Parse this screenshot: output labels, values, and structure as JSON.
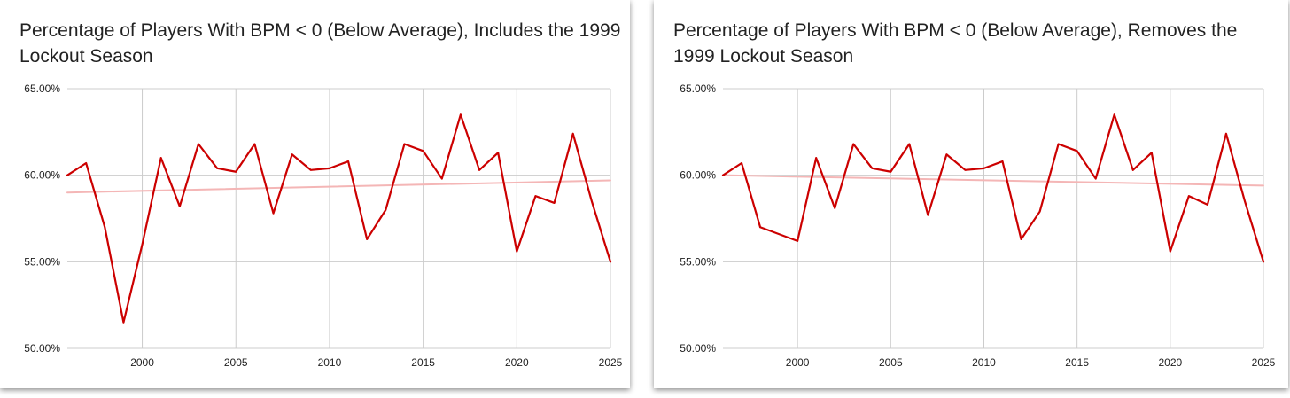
{
  "chart_data": [
    {
      "type": "line",
      "title": "Percentage of Players With BPM < 0 (Below Average), Includes the 1999 Lockout Season",
      "xlabel": "",
      "ylabel": "",
      "xlim": [
        1996,
        2025
      ],
      "ylim": [
        50,
        65
      ],
      "x_ticks": [
        2000,
        2005,
        2010,
        2015,
        2020,
        2025
      ],
      "y_ticks": [
        50,
        55,
        60,
        65
      ],
      "y_tick_labels": [
        "50.00%",
        "55.00%",
        "60.00%",
        "65.00%"
      ],
      "grid": true,
      "legend": "none",
      "series": [
        {
          "color": "#cc0000",
          "x": [
            1996,
            1997,
            1998,
            1999,
            2000,
            2001,
            2002,
            2003,
            2004,
            2005,
            2006,
            2007,
            2008,
            2009,
            2010,
            2011,
            2012,
            2013,
            2014,
            2015,
            2016,
            2017,
            2018,
            2019,
            2020,
            2021,
            2022,
            2023,
            2024,
            2025
          ],
          "values": [
            60.0,
            60.7,
            57.0,
            51.5,
            56.0,
            61.0,
            58.2,
            61.8,
            60.4,
            60.2,
            61.8,
            57.8,
            61.2,
            60.3,
            60.4,
            60.8,
            56.3,
            58.0,
            61.8,
            61.4,
            59.8,
            63.5,
            60.3,
            61.3,
            55.6,
            58.8,
            58.4,
            62.4,
            58.5,
            55.0
          ]
        },
        {
          "kind": "trendline",
          "color": "#f4b6b6",
          "x": [
            1996,
            2025
          ],
          "values": [
            59.0,
            59.7
          ]
        }
      ]
    },
    {
      "type": "line",
      "title": "Percentage of Players With BPM < 0 (Below Average), Removes the 1999 Lockout Season",
      "xlabel": "",
      "ylabel": "",
      "xlim": [
        1996,
        2025
      ],
      "ylim": [
        50,
        65
      ],
      "x_ticks": [
        2000,
        2005,
        2010,
        2015,
        2020,
        2025
      ],
      "y_ticks": [
        50,
        55,
        60,
        65
      ],
      "y_tick_labels": [
        "50.00%",
        "55.00%",
        "60.00%",
        "65.00%"
      ],
      "grid": true,
      "legend": "none",
      "series": [
        {
          "color": "#cc0000",
          "x": [
            1996,
            1997,
            1998,
            2000,
            2001,
            2002,
            2003,
            2004,
            2005,
            2006,
            2007,
            2008,
            2009,
            2010,
            2011,
            2012,
            2013,
            2014,
            2015,
            2016,
            2017,
            2018,
            2019,
            2020,
            2021,
            2022,
            2023,
            2024,
            2025
          ],
          "values": [
            60.0,
            60.7,
            57.0,
            56.2,
            61.0,
            58.1,
            61.8,
            60.4,
            60.2,
            61.8,
            57.7,
            61.2,
            60.3,
            60.4,
            60.8,
            56.3,
            57.9,
            61.8,
            61.4,
            59.8,
            63.5,
            60.3,
            61.3,
            55.6,
            58.8,
            58.3,
            62.4,
            58.5,
            55.0
          ]
        },
        {
          "kind": "trendline",
          "color": "#f4b6b6",
          "x": [
            1996,
            2025
          ],
          "values": [
            60.0,
            59.4
          ]
        }
      ]
    }
  ]
}
